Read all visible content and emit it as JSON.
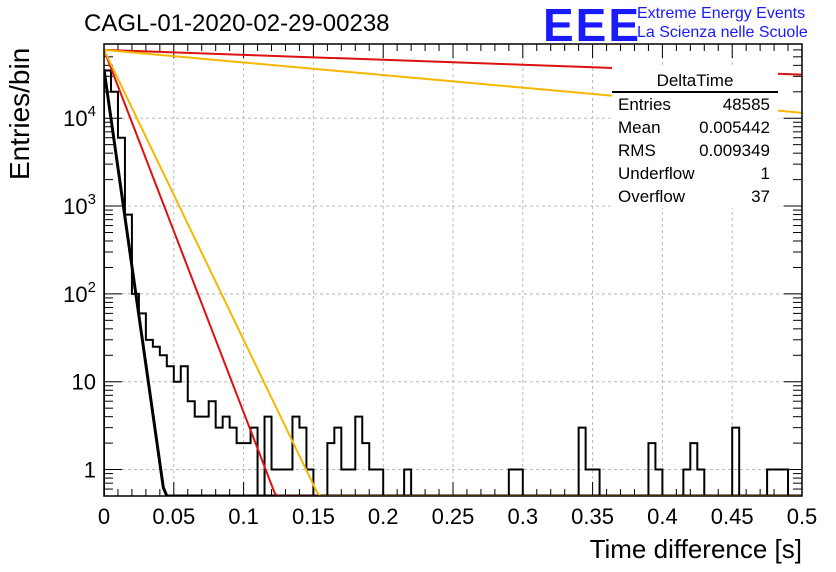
{
  "chart_data": {
    "type": "histogram",
    "title": "CAGL-01-2020-02-29-00238",
    "xlabel": "Time difference [s]",
    "ylabel": "Entries/bin",
    "xlim": [
      0,
      0.5
    ],
    "ylim": [
      0.5,
      70000
    ],
    "yscale": "log",
    "grid": true,
    "x_ticks": [
      "0",
      "0.05",
      "0.1",
      "0.15",
      "0.2",
      "0.25",
      "0.3",
      "0.35",
      "0.4",
      "0.45",
      "0.5"
    ],
    "y_ticks": [
      {
        "base": "1",
        "exp": ""
      },
      {
        "base": "10",
        "exp": ""
      },
      {
        "base": "10",
        "exp": "2"
      },
      {
        "base": "10",
        "exp": "3"
      },
      {
        "base": "10",
        "exp": "4"
      }
    ],
    "histogram": {
      "bin_width": 0.005,
      "x_start": 0,
      "counts": [
        35000,
        20000,
        6000,
        800,
        100,
        60,
        30,
        25,
        20,
        15,
        10,
        15,
        6,
        4,
        4,
        6,
        3,
        4,
        3,
        2,
        2,
        3,
        0.5,
        4,
        1,
        1,
        1,
        4,
        3,
        1,
        0.5,
        0.5,
        2,
        3,
        1,
        1,
        4,
        2,
        1,
        1,
        0.5,
        0.5,
        0.5,
        1,
        0.5,
        0.5,
        0.5,
        0.5,
        0.5,
        0.5,
        0.5,
        0.5,
        0.5,
        0.5,
        0.5,
        0.5,
        0.5,
        0.5,
        1,
        1,
        0.5,
        0.5,
        0.5,
        0.5,
        0.5,
        0.5,
        0.5,
        0.5,
        3,
        1,
        1,
        0.5,
        0.5,
        0.5,
        0.5,
        0.5,
        0.5,
        0.5,
        2,
        1,
        0.5,
        0.5,
        0.5,
        1,
        2,
        1,
        0.5,
        0.5,
        0.5,
        0.5,
        3,
        0.5,
        0.5,
        0.5,
        0.5,
        1,
        1,
        1,
        0.5,
        0.5
      ]
    },
    "fits": [
      {
        "color": "#000000",
        "a": 36000,
        "slope": 258
      },
      {
        "color": "#dd1111",
        "a": 60000,
        "slope": 95
      },
      {
        "color": "#f5b800",
        "a": 60000,
        "slope": 76
      },
      {
        "color": "#dd1111",
        "a": 60000,
        "slope": 1.3
      },
      {
        "color": "#f5b800",
        "a": 60000,
        "slope": 3.3
      }
    ],
    "stats": {
      "name": "DeltaTime",
      "rows": [
        {
          "label": "Entries",
          "value": "48585"
        },
        {
          "label": "Mean",
          "value": "0.005442"
        },
        {
          "label": "RMS",
          "value": "0.009349"
        },
        {
          "label": "Underflow",
          "value": "1"
        },
        {
          "label": "Overflow",
          "value": "37"
        }
      ]
    }
  },
  "logo": {
    "mark": "EEE",
    "line1": "Extreme Energy Events",
    "line2": "La Scienza nelle Scuole"
  }
}
